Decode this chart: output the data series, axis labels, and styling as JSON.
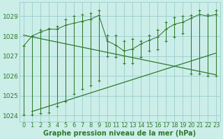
{
  "xlabel": "Graphe pression niveau de la mer (hPa)",
  "hours": [
    0,
    1,
    2,
    3,
    4,
    5,
    6,
    7,
    8,
    9,
    10,
    11,
    12,
    13,
    14,
    15,
    16,
    17,
    18,
    19,
    20,
    21,
    22,
    23
  ],
  "mean_values": [
    1027.5,
    1028.0,
    1028.2,
    1028.35,
    1028.35,
    1028.55,
    1028.65,
    1028.75,
    1028.85,
    1029.05,
    1027.75,
    1027.55,
    1027.25,
    1027.35,
    1027.6,
    1027.8,
    1027.95,
    1028.35,
    1028.6,
    1028.7,
    1028.9,
    1029.1,
    1029.0,
    1029.1
  ],
  "max_values": [
    1027.5,
    1028.0,
    1028.3,
    1028.4,
    1028.5,
    1028.85,
    1029.0,
    1029.1,
    1029.15,
    1029.3,
    1028.05,
    1028.05,
    1027.75,
    1027.85,
    1027.75,
    1028.05,
    1028.3,
    1028.7,
    1028.95,
    1029.0,
    1029.05,
    1029.3,
    1029.1,
    1029.3
  ],
  "min_values": [
    1024.05,
    1024.05,
    1024.1,
    1024.15,
    1024.45,
    1024.7,
    1025.1,
    1025.35,
    1025.5,
    1025.75,
    1027.0,
    1026.95,
    1026.65,
    1026.65,
    1026.95,
    1027.25,
    1027.35,
    1027.75,
    1027.95,
    1028.15,
    1026.1,
    1026.1,
    1026.0,
    1026.0
  ],
  "trend1_x": [
    0,
    23
  ],
  "trend1_y": [
    1028.05,
    1026.05
  ],
  "trend2_x": [
    1,
    23
  ],
  "trend2_y": [
    1024.2,
    1027.15
  ],
  "line_color": "#2d7a2d",
  "bg_color": "#cceee8",
  "grid_color": "#99cccc",
  "ylim": [
    1023.7,
    1029.7
  ],
  "xlim": [
    -0.5,
    23.5
  ],
  "yticks": [
    1024,
    1025,
    1026,
    1027,
    1028,
    1029
  ],
  "xticks": [
    0,
    1,
    2,
    3,
    4,
    5,
    6,
    7,
    8,
    9,
    10,
    11,
    12,
    13,
    14,
    15,
    16,
    17,
    18,
    19,
    20,
    21,
    22,
    23
  ],
  "tick_fontsize": 6.0,
  "xlabel_fontsize": 7.0
}
